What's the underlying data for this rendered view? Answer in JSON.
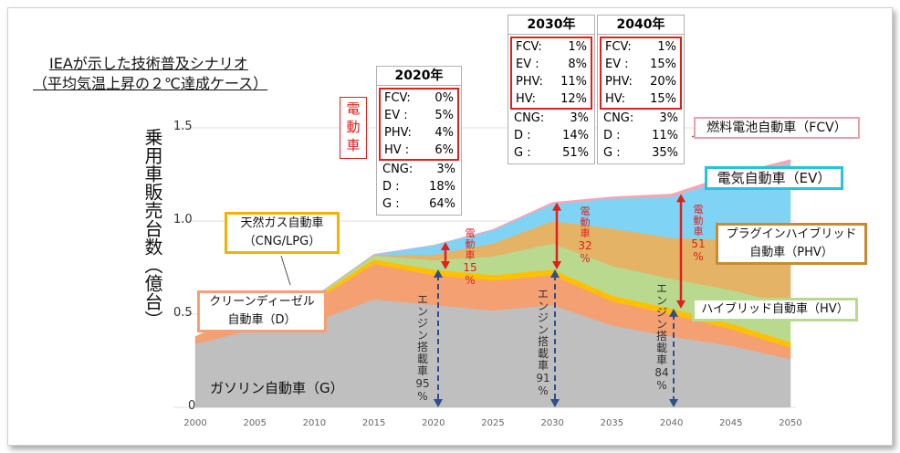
{
  "title": {
    "line1": "IEAが示した技術普及シナリオ",
    "line2": "（平均気温上昇の２℃達成ケース）"
  },
  "denko_label": "電\n動\n車",
  "chart_data": {
    "type": "area",
    "stacked": true,
    "ylabel": "乗用車販売台数（億台）",
    "ylim": [
      0,
      1.5
    ],
    "yticks": [
      "0",
      "0.5",
      "1.0",
      "1.5"
    ],
    "xlim": [
      2000,
      2050
    ],
    "xticks": [
      "2000",
      "2005",
      "2010",
      "2015",
      "2020",
      "2025",
      "2030",
      "2035",
      "2040",
      "2045",
      "2050"
    ],
    "x": [
      2000,
      2005,
      2010,
      2015,
      2020,
      2025,
      2030,
      2035,
      2040,
      2045,
      2050
    ],
    "series": [
      {
        "name": "ガソリン自動車（G）",
        "color": "#bfbfbf",
        "values": [
          0.34,
          0.42,
          0.46,
          0.58,
          0.55,
          0.52,
          0.55,
          0.44,
          0.38,
          0.33,
          0.26
        ]
      },
      {
        "name": "クリーンディーゼル自動車（D）",
        "color": "#f4a072",
        "values": [
          0.04,
          0.09,
          0.11,
          0.19,
          0.16,
          0.16,
          0.16,
          0.13,
          0.12,
          0.09,
          0.06
        ]
      },
      {
        "name": "天然ガス自動車（CNG/LPG）",
        "color": "#ffc000",
        "values": [
          0.0,
          0.01,
          0.015,
          0.025,
          0.03,
          0.03,
          0.03,
          0.03,
          0.03,
          0.03,
          0.03
        ]
      },
      {
        "name": "ハイブリッド自動車（HV）",
        "color": "#b9d98e",
        "values": [
          0.0,
          0.005,
          0.01,
          0.02,
          0.05,
          0.1,
          0.14,
          0.16,
          0.16,
          0.18,
          0.2
        ]
      },
      {
        "name": "プラグインハイブリッド自動車（PHV）",
        "color": "#e4b366",
        "values": [
          0.0,
          0.0,
          0.0,
          0.003,
          0.03,
          0.07,
          0.12,
          0.2,
          0.22,
          0.27,
          0.3
        ]
      },
      {
        "name": "電気自動車（EV）",
        "color": "#7fd4f6",
        "values": [
          0.0,
          0.0,
          0.0,
          0.003,
          0.05,
          0.07,
          0.09,
          0.16,
          0.22,
          0.33,
          0.46
        ]
      },
      {
        "name": "燃料電池自動車（FCV）",
        "color": "#f4a6b8",
        "values": [
          0.0,
          0.0,
          0.0,
          0.0,
          0.0,
          0.005,
          0.01,
          0.01,
          0.015,
          0.02,
          0.02
        ]
      }
    ],
    "annotations": {
      "electric_2020": "電動車 15 %",
      "electric_2030": "電動車 32 %",
      "electric_2040": "電動車 51 %",
      "engine_2020": "エンジン搭載車 95 %",
      "engine_2030": "エンジン搭載車 91 %",
      "engine_2040": "エンジン搭載車 84 %"
    }
  },
  "year_boxes": [
    {
      "year": "2020年",
      "electric": [
        [
          "FCV:",
          "0%"
        ],
        [
          "EV :",
          "5%"
        ],
        [
          "PHV:",
          "4%"
        ],
        [
          "HV :",
          "6%"
        ]
      ],
      "engine": [
        [
          "CNG:",
          "3%"
        ],
        [
          "D :",
          "18%"
        ],
        [
          "G :",
          "64%"
        ]
      ]
    },
    {
      "year": "2030年",
      "electric": [
        [
          "FCV:",
          "1%"
        ],
        [
          "EV :",
          "8%"
        ],
        [
          "PHV:",
          "11%"
        ],
        [
          "HV:",
          "12%"
        ]
      ],
      "engine": [
        [
          "CNG:",
          "3%"
        ],
        [
          "D :",
          "14%"
        ],
        [
          "G :",
          "51%"
        ]
      ]
    },
    {
      "year": "2040年",
      "electric": [
        [
          "FCV:",
          "1%"
        ],
        [
          "EV :",
          "15%"
        ],
        [
          "PHV:",
          "20%"
        ],
        [
          "HV:",
          "15%"
        ]
      ],
      "engine": [
        [
          "CNG:",
          "3%"
        ],
        [
          "D :",
          "11%"
        ],
        [
          "G :",
          "35%"
        ]
      ]
    }
  ],
  "series_labels": {
    "fcv": "燃料電池自動車（FCV）",
    "ev": "電気自動車（EV）",
    "phv_line1": "プラグインハイブリッド",
    "phv_line2": "自動車（PHV）",
    "hv": "ハイブリッド自動車（HV）",
    "cng_line1": "天然ガス自動車",
    "cng_line2": "（CNG/LPG）",
    "d_line1": "クリーンディーゼル",
    "d_line2": "自動車（D）",
    "g": "ガソリン自動車（G）"
  },
  "arrow_labels": {
    "e2020": [
      "電",
      "動",
      "車",
      "15",
      "%"
    ],
    "e2030": [
      "電",
      "動",
      "車",
      "32",
      "%"
    ],
    "e2040": [
      "電",
      "動",
      "車",
      "51",
      "%"
    ],
    "g2020": [
      "エ",
      "ン",
      "ジ",
      "ン",
      "搭",
      "載",
      "車",
      "95",
      "%"
    ],
    "g2030": [
      "エ",
      "ン",
      "ジ",
      "ン",
      "搭",
      "載",
      "車",
      "91",
      "%"
    ],
    "g2040": [
      "エ",
      "ン",
      "ジ",
      "ン",
      "搭",
      "載",
      "車",
      "84",
      "%"
    ]
  },
  "colors": {
    "electric_red": "#e0201c",
    "engine_blue": "#2e4f8a",
    "fcv_border": "#e8a0ac",
    "ev_border": "#27c2dd",
    "phv_border": "#c98a34",
    "hv_border": "#b9d98e",
    "cng_border": "#f0b400",
    "d_border": "#f4a072"
  }
}
